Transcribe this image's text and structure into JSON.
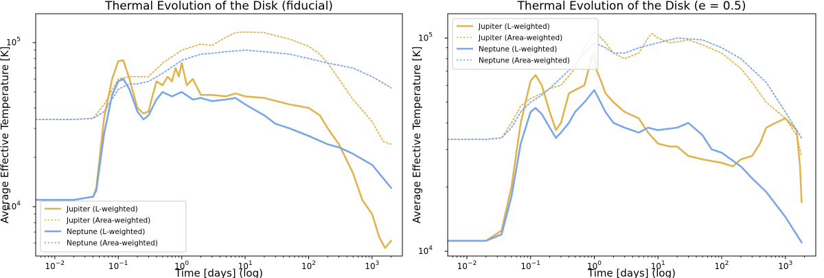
{
  "colors": {
    "jupiter": "#e2b34c",
    "neptune": "#7aa6e8"
  },
  "chart_data": [
    {
      "type": "line",
      "title": "Thermal Evolution of the Disk (fiducial)",
      "xlabel": "Time [days] (log)",
      "ylabel": "Average Effective Temperature [K]",
      "xscale": "log",
      "yscale": "log",
      "xlim": [
        0.005,
        3000
      ],
      "ylim": [
        5000,
        150000
      ],
      "xticks": [
        {
          "value": 0.01,
          "base": "10",
          "exp": "−2"
        },
        {
          "value": 0.1,
          "base": "10",
          "exp": "−1"
        },
        {
          "value": 1,
          "base": "10",
          "exp": "0"
        },
        {
          "value": 10,
          "base": "10",
          "exp": "1"
        },
        {
          "value": 100,
          "base": "10",
          "exp": "2"
        },
        {
          "value": 1000,
          "base": "10",
          "exp": "3"
        }
      ],
      "yticks": [
        {
          "value": 10000,
          "base": "10",
          "exp": "4"
        },
        {
          "value": 100000,
          "base": "10",
          "exp": "5"
        }
      ],
      "legend_position": "lower-left",
      "series": [
        {
          "name": "Jupiter (L-weighted)",
          "color_key": "jupiter",
          "style": "solid",
          "x": [
            0.005,
            0.02,
            0.04,
            0.045,
            0.06,
            0.08,
            0.1,
            0.12,
            0.15,
            0.2,
            0.25,
            0.3,
            0.35,
            0.4,
            0.5,
            0.6,
            0.7,
            0.8,
            0.9,
            1.0,
            1.2,
            1.5,
            2,
            3,
            5,
            7,
            10,
            20,
            50,
            100,
            150,
            200,
            300,
            500,
            700,
            1000,
            1300,
            1600,
            2000
          ],
          "y": [
            11000,
            11000,
            11500,
            13000,
            35000,
            60000,
            77000,
            78000,
            60000,
            40000,
            37000,
            38000,
            48000,
            58000,
            55000,
            62000,
            58000,
            70000,
            62000,
            75000,
            55000,
            60000,
            48000,
            48000,
            47000,
            49000,
            47000,
            46000,
            42000,
            40000,
            36000,
            30000,
            24000,
            16000,
            11000,
            9000,
            6500,
            5600,
            6200
          ]
        },
        {
          "name": "Jupiter (Area-weighted)",
          "color_key": "jupiter",
          "style": "dotted",
          "x": [
            0.005,
            0.02,
            0.04,
            0.06,
            0.1,
            0.15,
            0.2,
            0.3,
            0.5,
            1,
            2,
            3,
            5,
            7,
            10,
            20,
            50,
            100,
            150,
            200,
            300,
            500,
            1000,
            1500,
            2000
          ],
          "y": [
            34000,
            34000,
            34500,
            42000,
            60000,
            62000,
            62000,
            62000,
            75000,
            90000,
            98000,
            96000,
            108000,
            115000,
            116000,
            115000,
            105000,
            95000,
            85000,
            75000,
            60000,
            45000,
            33000,
            25000,
            24000
          ]
        },
        {
          "name": "Neptune (L-weighted)",
          "color_key": "neptune",
          "style": "solid",
          "x": [
            0.005,
            0.02,
            0.04,
            0.045,
            0.06,
            0.08,
            0.1,
            0.12,
            0.15,
            0.2,
            0.25,
            0.3,
            0.4,
            0.5,
            0.7,
            1.0,
            1.5,
            2,
            3,
            5,
            7,
            10,
            20,
            30,
            50,
            100,
            200,
            300,
            500,
            1000,
            2000
          ],
          "y": [
            11000,
            11000,
            11500,
            12500,
            28000,
            48000,
            58000,
            60000,
            52000,
            38000,
            34000,
            36000,
            45000,
            50000,
            47000,
            50000,
            45000,
            46000,
            44000,
            45000,
            46000,
            42000,
            36000,
            32000,
            30000,
            27000,
            24000,
            23000,
            21000,
            18000,
            13000
          ]
        },
        {
          "name": "Neptune (Area-weighted)",
          "color_key": "neptune",
          "style": "dotted",
          "x": [
            0.005,
            0.02,
            0.04,
            0.06,
            0.1,
            0.15,
            0.2,
            0.3,
            0.5,
            1,
            2,
            3,
            5,
            10,
            20,
            50,
            100,
            200,
            500,
            1000,
            2000
          ],
          "y": [
            34000,
            34000,
            34500,
            38000,
            52000,
            56000,
            56000,
            58000,
            65000,
            78000,
            85000,
            86000,
            88000,
            90000,
            88000,
            85000,
            80000,
            75000,
            70000,
            62000,
            53000
          ]
        }
      ]
    },
    {
      "type": "line",
      "title": "Thermal Evolution of the Disk (e = 0.5)",
      "xlabel": "Time [days] (log)",
      "ylabel": "Average Effective Temperature [K]",
      "xscale": "log",
      "yscale": "log",
      "xlim": [
        0.005,
        3000
      ],
      "ylim": [
        9500,
        130000
      ],
      "xticks": [
        {
          "value": 0.01,
          "base": "10",
          "exp": "−2"
        },
        {
          "value": 0.1,
          "base": "10",
          "exp": "−1"
        },
        {
          "value": 1,
          "base": "10",
          "exp": "0"
        },
        {
          "value": 10,
          "base": "10",
          "exp": "1"
        },
        {
          "value": 100,
          "base": "10",
          "exp": "2"
        },
        {
          "value": 1000,
          "base": "10",
          "exp": "3"
        }
      ],
      "yticks": [
        {
          "value": 10000,
          "base": "10",
          "exp": "4"
        },
        {
          "value": 100000,
          "base": "10",
          "exp": "5"
        }
      ],
      "legend_position": "upper-left",
      "series": [
        {
          "name": "Jupiter (L-weighted)",
          "color_key": "jupiter",
          "style": "solid",
          "x": [
            0.005,
            0.02,
            0.035,
            0.05,
            0.07,
            0.1,
            0.12,
            0.15,
            0.2,
            0.25,
            0.3,
            0.4,
            0.5,
            0.7,
            0.8,
            0.9,
            1.0,
            1.1,
            1.3,
            1.5,
            2,
            3,
            5,
            7,
            10,
            15,
            20,
            30,
            50,
            100,
            150,
            200,
            300,
            400,
            500,
            700,
            1000,
            1500,
            1700,
            1800
          ],
          "y": [
            11200,
            11200,
            12500,
            20000,
            40000,
            63000,
            67000,
            60000,
            45000,
            37000,
            40000,
            55000,
            57000,
            60000,
            70000,
            80000,
            85000,
            70000,
            62000,
            55000,
            50000,
            45000,
            42000,
            36000,
            32000,
            31000,
            31000,
            28000,
            27000,
            26000,
            25000,
            27000,
            28000,
            32000,
            38000,
            40000,
            42000,
            37000,
            25000,
            17000
          ]
        },
        {
          "name": "Jupiter (Area-weighted)",
          "color_key": "jupiter",
          "style": "dotted",
          "x": [
            0.005,
            0.02,
            0.035,
            0.05,
            0.07,
            0.1,
            0.15,
            0.2,
            0.3,
            0.5,
            0.7,
            1.0,
            1.5,
            2,
            3,
            5,
            7,
            8,
            10,
            15,
            20,
            30,
            50,
            100,
            200,
            300,
            500,
            1000,
            1500,
            1800
          ],
          "y": [
            33500,
            33500,
            34000,
            40000,
            48000,
            52000,
            55000,
            58000,
            60000,
            72000,
            90000,
            108000,
            95000,
            85000,
            80000,
            85000,
            100000,
            105000,
            100000,
            95000,
            96000,
            98000,
            93000,
            85000,
            72000,
            62000,
            50000,
            42000,
            35000,
            28000
          ]
        },
        {
          "name": "Neptune (L-weighted)",
          "color_key": "neptune",
          "style": "solid",
          "x": [
            0.005,
            0.02,
            0.035,
            0.05,
            0.07,
            0.1,
            0.12,
            0.15,
            0.2,
            0.25,
            0.3,
            0.4,
            0.5,
            0.7,
            1.0,
            1.5,
            2,
            3,
            5,
            7,
            10,
            20,
            30,
            50,
            70,
            100,
            200,
            300,
            500,
            1000,
            1800
          ],
          "y": [
            11200,
            11200,
            12000,
            18000,
            32000,
            45000,
            47000,
            44000,
            38000,
            34000,
            36000,
            40000,
            45000,
            50000,
            57000,
            45000,
            40000,
            38000,
            36000,
            38000,
            37000,
            38000,
            40000,
            35000,
            30000,
            29000,
            25000,
            22000,
            19000,
            14500,
            11000
          ]
        },
        {
          "name": "Neptune (Area-weighted)",
          "color_key": "neptune",
          "style": "dotted",
          "x": [
            0.005,
            0.02,
            0.035,
            0.05,
            0.07,
            0.1,
            0.15,
            0.2,
            0.3,
            0.5,
            0.7,
            1.0,
            1.5,
            2,
            3,
            5,
            10,
            20,
            50,
            100,
            200,
            500,
            1000,
            1800
          ],
          "y": [
            33500,
            33500,
            34000,
            38000,
            45000,
            50000,
            54000,
            58000,
            65000,
            75000,
            85000,
            95000,
            90000,
            85000,
            85000,
            90000,
            95000,
            100000,
            98000,
            90000,
            80000,
            62000,
            45000,
            34000
          ]
        }
      ]
    }
  ]
}
